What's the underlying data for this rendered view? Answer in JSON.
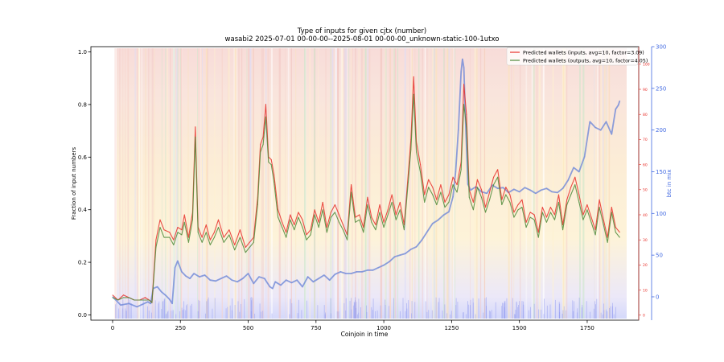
{
  "chart_data": {
    "type": "line",
    "title": "Type of inputs for given cjtx (number)",
    "subtitle": "wasabi2 2025-07-01 00-00-00--2025-08-01 00-00-00_unknown-static-100-1utxo",
    "xlabel": "Coinjoin in time",
    "ylabel": "Fraction of input numbers",
    "y2label": "btc in mix",
    "xlim": [
      -80,
      1940
    ],
    "ylim": [
      -0.02,
      1.02
    ],
    "y2lim": [
      -28,
      300
    ],
    "y3lim": [
      -2,
      107
    ],
    "x_ticks": [
      0,
      250,
      500,
      750,
      1000,
      1250,
      1500,
      1750
    ],
    "y_ticks": [
      0.0,
      0.2,
      0.4,
      0.6,
      0.8,
      1.0
    ],
    "y2_ticks": [
      0,
      50,
      100,
      150,
      200,
      250,
      300
    ],
    "y3_ticks": [
      0,
      10,
      20,
      30,
      40,
      50,
      60,
      70,
      80,
      90,
      100
    ],
    "legend_position": "top-right",
    "grid": false,
    "series": [
      {
        "name": "Predicted wallets (inputs, avg=10, factor=3.09)",
        "axis": "y3",
        "color": "#e8302a",
        "x": [
          0,
          20,
          40,
          60,
          80,
          100,
          120,
          135,
          145,
          160,
          175,
          190,
          210,
          225,
          240,
          255,
          265,
          280,
          295,
          305,
          315,
          330,
          345,
          360,
          375,
          390,
          410,
          430,
          450,
          470,
          490,
          505,
          520,
          535,
          545,
          555,
          565,
          575,
          585,
          595,
          610,
          625,
          640,
          655,
          670,
          685,
          700,
          715,
          730,
          745,
          760,
          775,
          790,
          805,
          820,
          835,
          850,
          865,
          880,
          895,
          910,
          925,
          940,
          955,
          970,
          985,
          1000,
          1015,
          1030,
          1045,
          1060,
          1075,
          1090,
          1100,
          1110,
          1120,
          1135,
          1150,
          1165,
          1180,
          1195,
          1210,
          1225,
          1240,
          1255,
          1270,
          1285,
          1295,
          1305,
          1315,
          1330,
          1345,
          1360,
          1375,
          1390,
          1405,
          1420,
          1435,
          1450,
          1465,
          1480,
          1495,
          1510,
          1525,
          1540,
          1555,
          1570,
          1585,
          1600,
          1615,
          1630,
          1645,
          1660,
          1675,
          1690,
          1705,
          1720,
          1735,
          1750,
          1765,
          1780,
          1795,
          1810,
          1825,
          1840,
          1855,
          1870
        ],
        "values": [
          8,
          6,
          8,
          7,
          6,
          6,
          7,
          6,
          5,
          30,
          38,
          34,
          33,
          30,
          35,
          34,
          40,
          31,
          41,
          75,
          35,
          31,
          36,
          30,
          33,
          38,
          31,
          34,
          28,
          34,
          27,
          29,
          31,
          47,
          68,
          71,
          84,
          63,
          62,
          56,
          42,
          37,
          33,
          40,
          36,
          41,
          38,
          32,
          34,
          42,
          37,
          45,
          35,
          41,
          44,
          40,
          36,
          32,
          52,
          39,
          40,
          35,
          47,
          39,
          36,
          44,
          37,
          42,
          48,
          40,
          45,
          36,
          56,
          70,
          95,
          69,
          60,
          48,
          54,
          51,
          46,
          52,
          45,
          48,
          55,
          52,
          61,
          92,
          80,
          50,
          45,
          54,
          50,
          43,
          49,
          55,
          58,
          46,
          51,
          48,
          41,
          44,
          46,
          37,
          41,
          40,
          33,
          43,
          39,
          43,
          40,
          48,
          36,
          46,
          51,
          55,
          48,
          40,
          44,
          39,
          34,
          46,
          38,
          31,
          43,
          35,
          33
        ]
      },
      {
        "name": "Predicted wallets (outputs, avg=10, factor=4.05)",
        "axis": "y3",
        "color": "#4f8a3a",
        "x": [
          0,
          20,
          40,
          60,
          80,
          100,
          120,
          135,
          145,
          160,
          175,
          190,
          210,
          225,
          240,
          255,
          265,
          280,
          295,
          305,
          315,
          330,
          345,
          360,
          375,
          390,
          410,
          430,
          450,
          470,
          490,
          505,
          520,
          535,
          545,
          555,
          565,
          575,
          585,
          595,
          610,
          625,
          640,
          655,
          670,
          685,
          700,
          715,
          730,
          745,
          760,
          775,
          790,
          805,
          820,
          835,
          850,
          865,
          880,
          895,
          910,
          925,
          940,
          955,
          970,
          985,
          1000,
          1015,
          1030,
          1045,
          1060,
          1075,
          1090,
          1100,
          1110,
          1120,
          1135,
          1150,
          1165,
          1180,
          1195,
          1210,
          1225,
          1240,
          1255,
          1270,
          1285,
          1295,
          1305,
          1315,
          1330,
          1345,
          1360,
          1375,
          1390,
          1405,
          1420,
          1435,
          1450,
          1465,
          1480,
          1495,
          1510,
          1525,
          1540,
          1555,
          1570,
          1585,
          1600,
          1615,
          1630,
          1645,
          1660,
          1675,
          1690,
          1705,
          1720,
          1735,
          1750,
          1765,
          1780,
          1795,
          1810,
          1825,
          1840,
          1855,
          1870
        ],
        "values": [
          7,
          6,
          7,
          7,
          6,
          6,
          6,
          6,
          5,
          27,
          35,
          31,
          31,
          28,
          33,
          32,
          37,
          29,
          38,
          71,
          33,
          29,
          33,
          28,
          31,
          35,
          29,
          32,
          26,
          31,
          25,
          27,
          29,
          44,
          65,
          68,
          79,
          61,
          60,
          53,
          39,
          35,
          31,
          38,
          34,
          39,
          35,
          30,
          32,
          40,
          35,
          42,
          33,
          39,
          41,
          37,
          34,
          30,
          49,
          37,
          38,
          33,
          44,
          37,
          34,
          41,
          35,
          40,
          45,
          38,
          42,
          34,
          53,
          66,
          88,
          65,
          57,
          45,
          51,
          48,
          44,
          49,
          43,
          45,
          52,
          49,
          58,
          84,
          75,
          47,
          42,
          51,
          47,
          41,
          46,
          52,
          55,
          44,
          48,
          45,
          39,
          42,
          43,
          35,
          39,
          38,
          31,
          41,
          37,
          41,
          38,
          45,
          34,
          44,
          48,
          52,
          45,
          38,
          42,
          37,
          32,
          43,
          36,
          29,
          41,
          33,
          31
        ]
      },
      {
        "axis": "y2",
        "color": "#6f88d8",
        "x": [
          0,
          30,
          60,
          90,
          110,
          130,
          140,
          150,
          165,
          180,
          195,
          210,
          220,
          230,
          240,
          255,
          270,
          285,
          300,
          320,
          340,
          360,
          380,
          400,
          420,
          440,
          460,
          480,
          500,
          520,
          540,
          560,
          580,
          590,
          600,
          620,
          640,
          660,
          680,
          700,
          720,
          740,
          760,
          780,
          800,
          820,
          840,
          860,
          880,
          900,
          920,
          940,
          960,
          980,
          1000,
          1020,
          1040,
          1060,
          1080,
          1100,
          1120,
          1140,
          1160,
          1180,
          1200,
          1220,
          1240,
          1255,
          1265,
          1275,
          1285,
          1290,
          1295,
          1300,
          1310,
          1320,
          1340,
          1360,
          1380,
          1400,
          1420,
          1440,
          1460,
          1480,
          1500,
          1520,
          1540,
          1560,
          1580,
          1600,
          1620,
          1640,
          1660,
          1680,
          1700,
          1720,
          1740,
          1760,
          1780,
          1800,
          1820,
          1840,
          1855,
          1865,
          1870
        ],
        "values": [
          0,
          -10,
          -8,
          -12,
          -9,
          -6,
          -8,
          10,
          12,
          6,
          2,
          -3,
          -8,
          35,
          43,
          30,
          25,
          22,
          28,
          24,
          26,
          20,
          19,
          22,
          25,
          20,
          18,
          22,
          28,
          16,
          24,
          22,
          12,
          10,
          18,
          14,
          20,
          17,
          20,
          12,
          24,
          18,
          22,
          26,
          20,
          27,
          30,
          28,
          28,
          30,
          30,
          32,
          32,
          35,
          38,
          42,
          48,
          50,
          52,
          57,
          60,
          68,
          78,
          88,
          92,
          98,
          102,
          120,
          150,
          200,
          270,
          285,
          275,
          225,
          135,
          128,
          132,
          126,
          124,
          134,
          130,
          131,
          125,
          129,
          126,
          131,
          128,
          124,
          128,
          130,
          126,
          125,
          130,
          140,
          155,
          150,
          168,
          210,
          203,
          200,
          210,
          195,
          225,
          230,
          235
        ]
      }
    ]
  }
}
